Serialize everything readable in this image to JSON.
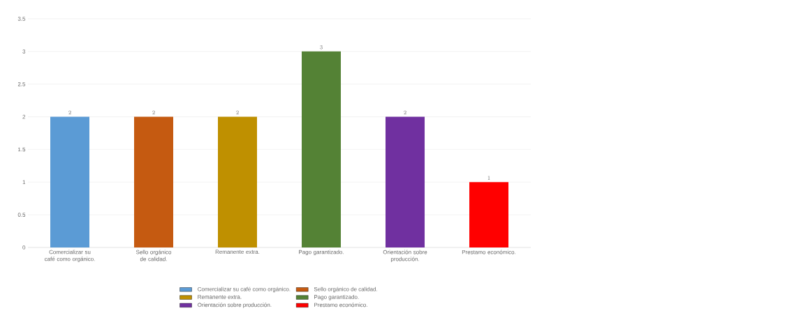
{
  "chart_data": {
    "type": "bar",
    "categories": [
      "Comercializar su café como orgánico.",
      "Sello orgánico de calidad.",
      "Remanente extra.",
      "Pago garantizado.",
      "Orientación sobre producción.",
      "Prestamo económico."
    ],
    "series": [
      {
        "name": "Comercializar su café como orgánico.",
        "color": "#5b9bd5",
        "values": [
          2,
          null,
          null,
          null,
          null,
          null
        ]
      },
      {
        "name": "Sello orgánico de calidad.",
        "color": "#c55a11",
        "values": [
          null,
          2,
          null,
          null,
          null,
          null
        ]
      },
      {
        "name": "Remanente extra.",
        "color": "#bf9000",
        "values": [
          null,
          null,
          2,
          null,
          null,
          null
        ]
      },
      {
        "name": "Pago garantizado.",
        "color": "#548235",
        "values": [
          null,
          null,
          null,
          3,
          null,
          null
        ]
      },
      {
        "name": "Orientación sobre producción.",
        "color": "#7030a0",
        "values": [
          null,
          null,
          null,
          null,
          2,
          null
        ]
      },
      {
        "name": "Prestamo económico.",
        "color": "#ff0000",
        "values": [
          null,
          null,
          null,
          null,
          null,
          1
        ]
      }
    ],
    "ylim": [
      0,
      3.5
    ],
    "yticks": [
      0,
      0.5,
      1,
      1.5,
      2,
      2.5,
      3,
      3.5
    ],
    "grid": "y",
    "data_labels": true,
    "legend": "bottom"
  }
}
